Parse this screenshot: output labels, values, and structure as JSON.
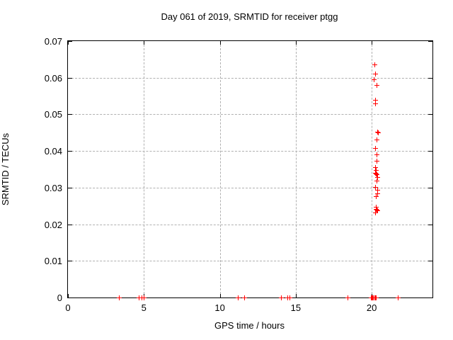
{
  "title": "Day 061 of 2019, SRMTID for receiver ptgg",
  "colors": {
    "background": "#ffffff",
    "border": "#000000",
    "grid": "#b0b0b0",
    "marker": "#ff0000",
    "text": "#000000"
  },
  "chart_data": {
    "type": "scatter",
    "title": "Day 061 of 2019, SRMTID for receiver ptgg",
    "xlabel": "GPS time / hours",
    "ylabel": "SRMTID / TECUs",
    "xlim": [
      0,
      24
    ],
    "ylim": [
      0,
      0.07
    ],
    "xticks": [
      0,
      5,
      10,
      15,
      20
    ],
    "xtick_labels": [
      "0",
      "5",
      "10",
      "15",
      "20"
    ],
    "yticks": [
      0,
      0.01,
      0.02,
      0.03,
      0.04,
      0.05,
      0.06,
      0.07
    ],
    "ytick_labels": [
      "0",
      "0.01",
      "0.02",
      "0.03",
      "0.04",
      "0.05",
      "0.06",
      "0.07"
    ],
    "grid": true,
    "legend": "none",
    "marker": "plus",
    "marker_color": "#ff0000",
    "series": [
      {
        "name": "SRMTID",
        "points": [
          [
            20.19,
            0.0636
          ],
          [
            20.24,
            0.0611
          ],
          [
            20.16,
            0.0594
          ],
          [
            20.35,
            0.058
          ],
          [
            20.24,
            0.0538
          ],
          [
            20.25,
            0.0529
          ],
          [
            20.4,
            0.0452
          ],
          [
            20.42,
            0.0449
          ],
          [
            20.32,
            0.0431
          ],
          [
            20.27,
            0.0407
          ],
          [
            20.32,
            0.0389
          ],
          [
            20.32,
            0.0373
          ],
          [
            20.25,
            0.0354
          ],
          [
            20.29,
            0.0348
          ],
          [
            20.26,
            0.0339
          ],
          [
            20.29,
            0.0337
          ],
          [
            20.33,
            0.0335
          ],
          [
            20.4,
            0.0328
          ],
          [
            20.34,
            0.0318
          ],
          [
            20.27,
            0.0301
          ],
          [
            20.4,
            0.0293
          ],
          [
            20.41,
            0.0284
          ],
          [
            20.28,
            0.0275
          ],
          [
            20.3,
            0.0246
          ],
          [
            20.28,
            0.0241
          ],
          [
            20.36,
            0.0239
          ],
          [
            20.4,
            0.0237
          ],
          [
            20.27,
            0.0231
          ],
          [
            3.37,
            0
          ],
          [
            4.69,
            0
          ],
          [
            4.87,
            0
          ],
          [
            5.03,
            0
          ],
          [
            11.19,
            0
          ],
          [
            11.62,
            0
          ],
          [
            14.06,
            0
          ],
          [
            14.45,
            0
          ],
          [
            14.62,
            0
          ],
          [
            18.41,
            0
          ],
          [
            19.97,
            0
          ],
          [
            20.03,
            0
          ],
          [
            20.08,
            0
          ],
          [
            20.13,
            0
          ],
          [
            20.18,
            0
          ],
          [
            20.23,
            0
          ],
          [
            20.28,
            0
          ],
          [
            21.76,
            0
          ]
        ]
      }
    ]
  }
}
